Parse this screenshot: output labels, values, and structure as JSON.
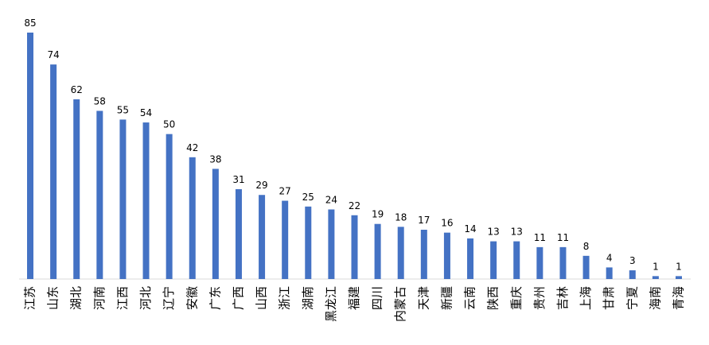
{
  "chart_data": {
    "type": "bar",
    "categories": [
      "江苏",
      "山东",
      "湖北",
      "河南",
      "江西",
      "河北",
      "辽宁",
      "安徽",
      "广东",
      "广西",
      "山西",
      "浙江",
      "湖南",
      "黑龙江",
      "福建",
      "四川",
      "内蒙古",
      "天津",
      "新疆",
      "云南",
      "陕西",
      "重庆",
      "贵州",
      "吉林",
      "上海",
      "甘肃",
      "宁夏",
      "海南",
      "青海"
    ],
    "values": [
      85,
      74,
      62,
      58,
      55,
      54,
      50,
      42,
      38,
      31,
      29,
      27,
      25,
      24,
      22,
      19,
      18,
      17,
      16,
      14,
      13,
      13,
      11,
      11,
      8,
      4,
      3,
      1,
      1
    ],
    "color": "#4472c4"
  }
}
